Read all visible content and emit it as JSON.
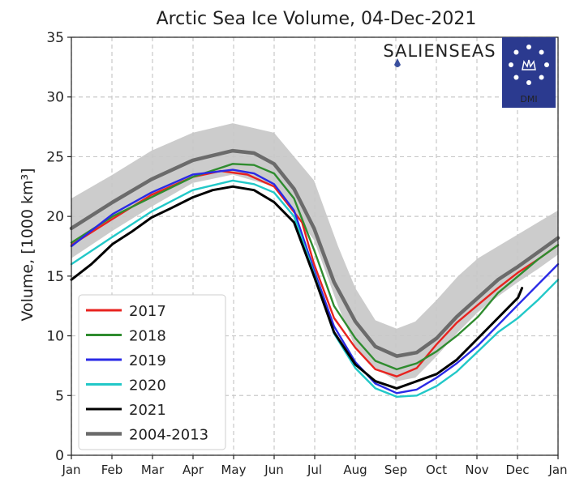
{
  "chart_data": {
    "type": "line",
    "title": "Arctic Sea Ice Volume, 04-Dec-2021",
    "xlabel": "",
    "ylabel": "Volume, [1000 km³]",
    "ylim": [
      0,
      35
    ],
    "yticks": [
      0,
      5,
      10,
      15,
      20,
      25,
      30,
      35
    ],
    "xlim": [
      0,
      365
    ],
    "xtick_labels": [
      "Jan",
      "Feb",
      "Mar",
      "Apr",
      "May",
      "Jun",
      "Jul",
      "Aug",
      "Sep",
      "Oct",
      "Nov",
      "Dec",
      "Jan"
    ],
    "grid": true,
    "legend_position": "lower-left",
    "band": {
      "x": [
        0,
        31,
        60,
        91,
        121,
        152,
        182,
        200,
        213,
        228,
        244,
        258,
        274,
        290,
        305,
        320,
        335,
        350,
        365
      ],
      "upper": [
        21.5,
        23.5,
        25.5,
        27.0,
        27.8,
        27.0,
        23.0,
        17.5,
        14.0,
        11.3,
        10.6,
        11.2,
        13.0,
        15.0,
        16.5,
        17.5,
        18.5,
        19.5,
        20.5
      ],
      "lower": [
        16.5,
        18.8,
        20.8,
        22.8,
        23.5,
        22.5,
        18.0,
        12.5,
        9.0,
        7.3,
        6.2,
        6.5,
        8.3,
        10.3,
        12.0,
        13.3,
        14.5,
        15.6,
        16.8
      ]
    },
    "series": [
      {
        "name": "2017",
        "color": "#e8231f",
        "x": [
          0,
          31,
          60,
          91,
          112,
          132,
          152,
          173,
          182,
          197,
          213,
          228,
          244,
          259,
          274,
          289,
          305,
          320,
          335,
          350,
          365
        ],
        "y": [
          17.6,
          19.8,
          21.8,
          23.3,
          23.8,
          23.5,
          22.5,
          19.5,
          16.0,
          11.5,
          9.0,
          7.2,
          6.6,
          7.3,
          9.3,
          11.1,
          12.6,
          14.0,
          15.3,
          16.4,
          17.6
        ]
      },
      {
        "name": "2018",
        "color": "#2f8c2f",
        "x": [
          0,
          31,
          60,
          91,
          121,
          137,
          152,
          167,
          182,
          197,
          213,
          228,
          244,
          259,
          274,
          289,
          305,
          320,
          335,
          350,
          365
        ],
        "y": [
          17.8,
          20.0,
          21.6,
          23.3,
          24.4,
          24.3,
          23.6,
          21.5,
          17.2,
          12.5,
          9.8,
          7.9,
          7.2,
          7.7,
          8.7,
          10.0,
          11.6,
          13.6,
          15.0,
          16.4,
          17.6
        ]
      },
      {
        "name": "2019",
        "color": "#2a2ae6",
        "x": [
          0,
          31,
          60,
          91,
          121,
          137,
          152,
          167,
          182,
          197,
          213,
          228,
          244,
          259,
          274,
          289,
          305,
          320,
          335,
          350,
          365
        ],
        "y": [
          17.5,
          20.2,
          22.0,
          23.5,
          23.9,
          23.6,
          22.7,
          20.5,
          15.5,
          10.8,
          7.8,
          6.0,
          5.2,
          5.5,
          6.5,
          7.7,
          9.2,
          10.9,
          12.6,
          14.3,
          16.0
        ]
      },
      {
        "name": "2020",
        "color": "#22c8c8",
        "x": [
          0,
          31,
          60,
          91,
          121,
          137,
          152,
          167,
          182,
          197,
          213,
          228,
          244,
          259,
          274,
          289,
          305,
          320,
          335,
          350,
          365
        ],
        "y": [
          16.0,
          18.3,
          20.4,
          22.2,
          23.0,
          22.7,
          22.0,
          20.0,
          15.2,
          10.2,
          7.3,
          5.6,
          4.9,
          5.0,
          5.8,
          7.0,
          8.7,
          10.3,
          11.5,
          13.0,
          14.7
        ]
      },
      {
        "name": "2021",
        "color": "#000000",
        "x": [
          0,
          15,
          31,
          45,
          60,
          75,
          91,
          106,
          121,
          137,
          152,
          167,
          182,
          197,
          213,
          228,
          244,
          259,
          274,
          289,
          305,
          320,
          335,
          338
        ],
        "y": [
          14.7,
          16.0,
          17.7,
          18.7,
          19.9,
          20.7,
          21.6,
          22.2,
          22.5,
          22.2,
          21.2,
          19.5,
          15.0,
          10.3,
          7.6,
          6.2,
          5.6,
          6.2,
          6.8,
          8.0,
          9.8,
          11.5,
          13.2,
          14.0
        ]
      },
      {
        "name": "2004-2013",
        "color": "#6b6b6b",
        "x": [
          0,
          31,
          60,
          91,
          121,
          137,
          152,
          167,
          182,
          197,
          213,
          228,
          244,
          259,
          274,
          289,
          305,
          320,
          335,
          350,
          365
        ],
        "y": [
          19.0,
          21.2,
          23.1,
          24.7,
          25.5,
          25.3,
          24.4,
          22.3,
          19.0,
          14.5,
          11.2,
          9.1,
          8.3,
          8.6,
          9.8,
          11.6,
          13.2,
          14.7,
          15.8,
          17.0,
          18.2
        ]
      }
    ]
  },
  "logo": {
    "brand_text": "SALIENSEAS",
    "dmi_text": "DMI",
    "badge_color": "#2b3a8f",
    "brand_color": "#3a4f9e"
  }
}
